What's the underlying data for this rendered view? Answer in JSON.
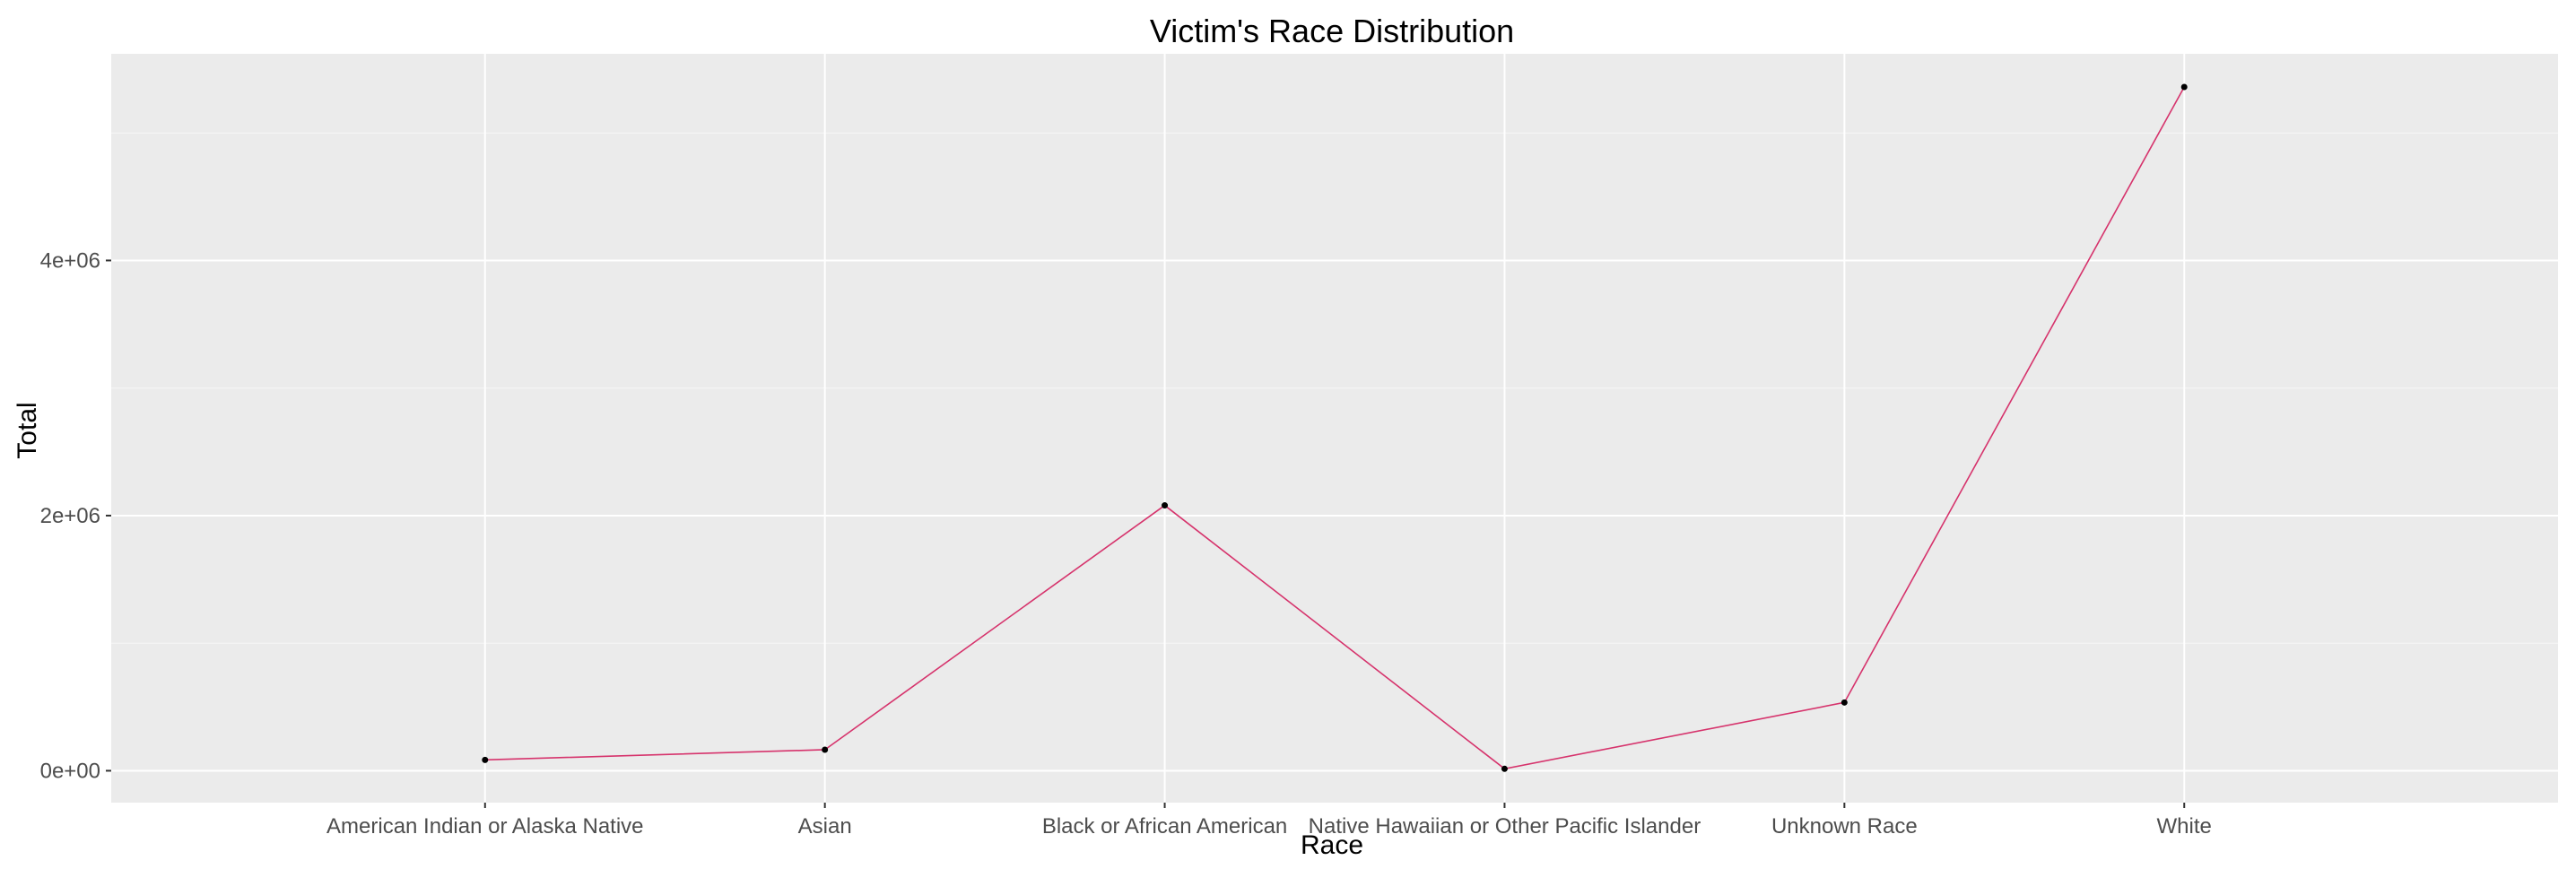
{
  "chart_data": {
    "type": "line",
    "title": "Victim's Race Distribution",
    "xlabel": "Race",
    "ylabel": "Total",
    "categories": [
      "American Indian or Alaska Native",
      "Asian",
      "Black or African American",
      "Native Hawaiian or Other Pacific Islander",
      "Unknown Race",
      "White"
    ],
    "values": [
      85000,
      165000,
      2080000,
      15000,
      535000,
      5360000
    ],
    "ylim": [
      -250000,
      5620000
    ],
    "yticks": [
      0,
      2000000,
      4000000
    ],
    "ytick_labels": [
      "0e+00",
      "2e+06",
      "4e+06"
    ],
    "grid": true,
    "colors": {
      "line": "#d6336c",
      "point": "#000000",
      "panel": "#ebebeb",
      "grid": "#ffffff"
    }
  }
}
